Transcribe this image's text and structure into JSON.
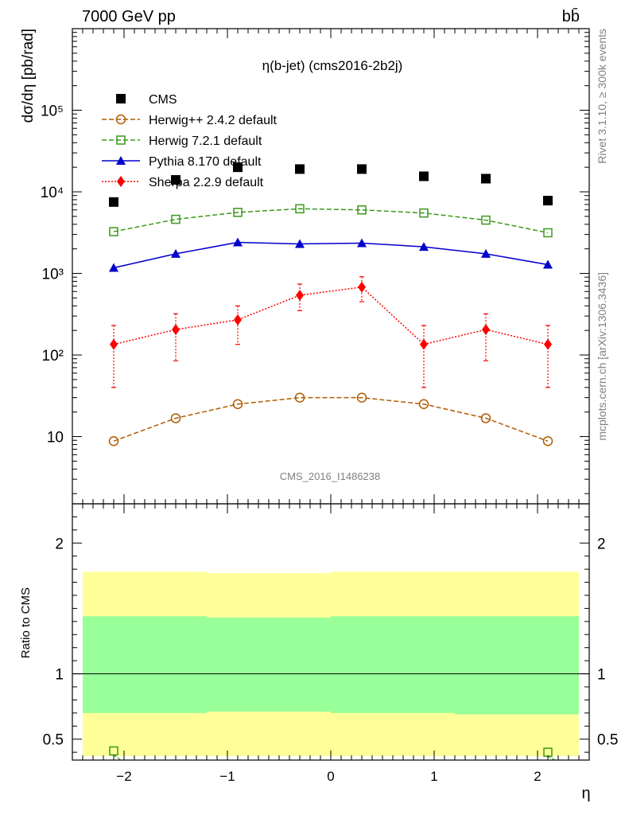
{
  "header": {
    "title_left": "7000 GeV pp",
    "title_right": "bb̄",
    "plot_title": "η(b-jet) (cms2016-2b2j)",
    "watermark": "CMS_2016_I1486238",
    "side_label_top": "Rivet 3.1.10, ≥ 300k events",
    "side_label_bottom": "mcplots.cern.ch [arXiv:1306.3436]"
  },
  "colors": {
    "cms": "#000000",
    "herwigpp": "#b05c00",
    "herwig7": "#3a9a1a",
    "pythia": "#0000cc",
    "sherpa": "#ff0000",
    "band_outer": "#ffff99",
    "band_inner": "#99ff99"
  },
  "chart_data": [
    {
      "type": "scatter",
      "panel": "main",
      "ylabel": "dσ/dη [pb/rad]",
      "yscale": "log",
      "ylim": [
        1.5,
        1000000
      ],
      "xlim": [
        -2.5,
        2.5
      ],
      "yticks": [
        {
          "v": 10,
          "label": "10"
        },
        {
          "v": 100,
          "label": "10²"
        },
        {
          "v": 1000,
          "label": "10³"
        },
        {
          "v": 10000,
          "label": "10⁴"
        },
        {
          "v": 100000,
          "label": "10⁵"
        }
      ],
      "legend_position": "top-left",
      "x": [
        -2.1,
        -1.5,
        -0.9,
        -0.3,
        0.3,
        0.9,
        1.5,
        2.1
      ],
      "series": [
        {
          "name": "CMS",
          "key": "cms",
          "marker": "square-filled",
          "line": "none",
          "values": [
            7500,
            14000,
            20000,
            19000,
            19000,
            15500,
            14500,
            7800
          ]
        },
        {
          "name": "Herwig++ 2.4.2 default",
          "key": "herwigpp",
          "marker": "circle-open",
          "line": "dashed",
          "values": [
            8.8,
            16.8,
            25,
            30,
            30,
            25,
            16.8,
            8.8
          ]
        },
        {
          "name": "Herwig 7.2.1 default",
          "key": "herwig7",
          "marker": "square-open",
          "line": "dashed",
          "values": [
            3250,
            4600,
            5600,
            6200,
            6000,
            5500,
            4500,
            3150
          ]
        },
        {
          "name": "Pythia 8.170 default",
          "key": "pythia",
          "marker": "triangle-filled",
          "line": "solid",
          "values": [
            1170,
            1740,
            2400,
            2300,
            2350,
            2120,
            1740,
            1280
          ]
        },
        {
          "name": "Sherpa 2.2.9 default",
          "key": "sherpa",
          "marker": "diamond-filled",
          "line": "dotted",
          "values": [
            135,
            205,
            270,
            540,
            680,
            135,
            205,
            135
          ],
          "err_low": [
            40,
            85,
            135,
            350,
            450,
            40,
            85,
            40
          ],
          "err_high": [
            230,
            320,
            400,
            740,
            910,
            230,
            320,
            230
          ]
        }
      ]
    },
    {
      "type": "scatter",
      "panel": "ratio",
      "ylabel": "Ratio to CMS",
      "xlabel": "η",
      "ylim": [
        0.34,
        2.3
      ],
      "xlim": [
        -2.5,
        2.5
      ],
      "xticks": [
        {
          "v": -2,
          "label": "−2"
        },
        {
          "v": -1,
          "label": "−1"
        },
        {
          "v": 0,
          "label": "0"
        },
        {
          "v": 1,
          "label": "1"
        },
        {
          "v": 2,
          "label": "2"
        }
      ],
      "yticks": [
        {
          "v": 0.5,
          "label": "0.5"
        },
        {
          "v": 1,
          "label": "1"
        },
        {
          "v": 2,
          "label": "2"
        }
      ],
      "bins": [
        {
          "lo": -2.4,
          "hi": -1.2,
          "inner_lo": 0.7,
          "inner_hi": 1.44,
          "outer_lo": 0.37,
          "outer_hi": 1.78
        },
        {
          "lo": -1.2,
          "hi": 0.0,
          "inner_lo": 0.71,
          "inner_hi": 1.43,
          "outer_lo": 0.37,
          "outer_hi": 1.77
        },
        {
          "lo": 0.0,
          "hi": 1.2,
          "inner_lo": 0.7,
          "inner_hi": 1.44,
          "outer_lo": 0.37,
          "outer_hi": 1.78
        },
        {
          "lo": 1.2,
          "hi": 2.4,
          "inner_lo": 0.69,
          "inner_hi": 1.44,
          "outer_lo": 0.37,
          "outer_hi": 1.78
        }
      ],
      "visible_points": [
        {
          "key": "herwig7",
          "x": -2.1,
          "y": 0.41
        },
        {
          "key": "herwig7",
          "x": 2.1,
          "y": 0.4
        }
      ]
    }
  ]
}
